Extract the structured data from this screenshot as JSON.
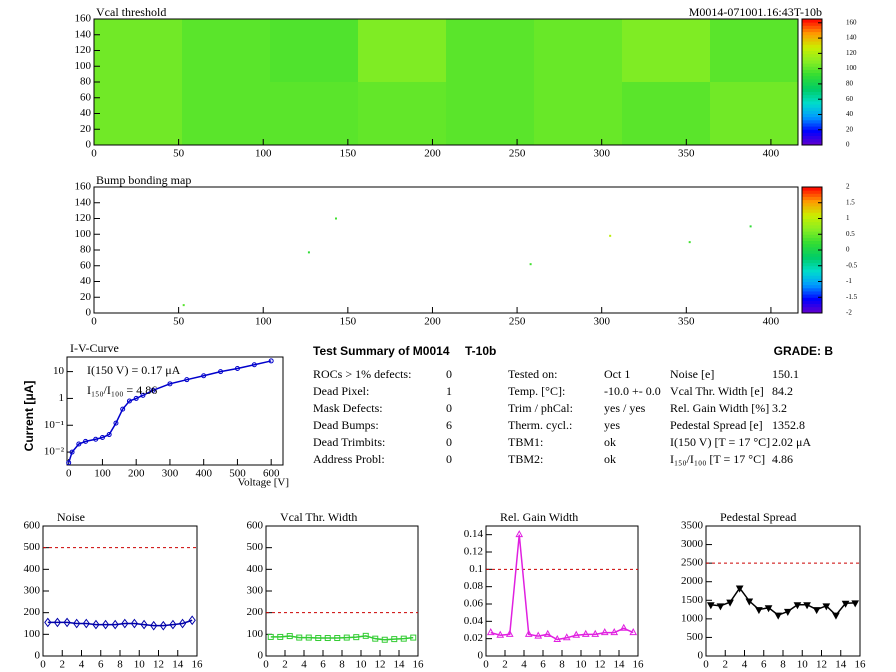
{
  "chart_data": [
    {
      "type": "heatmap",
      "title": "Vcal threshold",
      "subtitle": "M0014-071001.16:43T-10b",
      "x_edges": [
        0,
        52,
        104,
        156,
        208,
        260,
        312,
        364,
        416
      ],
      "y_edges": [
        0,
        80,
        160
      ],
      "values": [
        [
          105,
          100,
          100,
          102,
          100,
          103,
          100,
          105
        ],
        [
          105,
          100,
          98,
          108,
          100,
          103,
          108,
          100
        ]
      ],
      "xlim": [
        0,
        416
      ],
      "xticks": [
        0,
        50,
        100,
        150,
        200,
        250,
        300,
        350,
        400
      ],
      "ylim": [
        0,
        160
      ],
      "yticks": [
        0,
        20,
        40,
        60,
        80,
        100,
        120,
        140,
        160
      ],
      "zlim": [
        0,
        165
      ],
      "zticks": [
        0,
        20,
        40,
        60,
        80,
        100,
        120,
        140,
        160
      ],
      "palette": [
        "#6600cc",
        "#0000ff",
        "#0099ff",
        "#00ddcc",
        "#00cc66",
        "#33dd33",
        "#88ee22",
        "#ccee00",
        "#ff9900",
        "#ff0000"
      ]
    },
    {
      "type": "heatmap",
      "title": "Bump bonding map",
      "x": [
        143,
        127,
        305,
        352,
        388,
        258,
        53
      ],
      "y": [
        120,
        77,
        98,
        90,
        110,
        62,
        10
      ],
      "values": [
        0.3,
        0.2,
        1.0,
        0.3,
        0.2,
        0.3,
        0.4
      ],
      "xlim": [
        0,
        416
      ],
      "xticks": [
        0,
        50,
        100,
        150,
        200,
        250,
        300,
        350,
        400
      ],
      "ylim": [
        0,
        160
      ],
      "yticks": [
        0,
        20,
        40,
        60,
        80,
        100,
        120,
        140,
        160
      ],
      "zlim": [
        -2,
        2
      ],
      "zticks": [
        -2,
        -1.5,
        -1,
        -0.5,
        0,
        0.5,
        1,
        1.5,
        2
      ],
      "palette": [
        "#6600cc",
        "#0000ff",
        "#0099ff",
        "#00ddcc",
        "#00cc66",
        "#33dd33",
        "#88ee22",
        "#ccee00",
        "#ff9900",
        "#ff0000"
      ]
    },
    {
      "type": "line",
      "title": "I-V-Curve",
      "x_label": "Voltage [V]",
      "y_label": "Current [μA]",
      "annotations": [
        "I(150 V) = 0.17 μA",
        "I₁₅₀/I₁₀₀ = 4.86"
      ],
      "x": [
        0,
        10,
        30,
        50,
        80,
        100,
        120,
        140,
        160,
        180,
        200,
        220,
        250,
        300,
        350,
        400,
        450,
        500,
        550,
        600
      ],
      "values": [
        0.004,
        0.01,
        0.02,
        0.025,
        0.03,
        0.035,
        0.045,
        0.12,
        0.4,
        0.8,
        1.0,
        1.3,
        2,
        3.5,
        5,
        7,
        10,
        13,
        18,
        25
      ],
      "color": "#0000cc",
      "marker": "circle",
      "log_y": true,
      "xlim": [
        -5,
        635
      ],
      "xticks": [
        0,
        100,
        200,
        300,
        400,
        500,
        600
      ],
      "ylim": [
        0.0033,
        35
      ],
      "yticks": [
        {
          "value": 0.01,
          "label": "10⁻²"
        },
        {
          "value": 0.1,
          "label": "10⁻¹"
        },
        1,
        10
      ]
    },
    {
      "type": "line",
      "title": "Noise",
      "x": [
        0.5,
        1.5,
        2.5,
        3.5,
        4.5,
        5.5,
        6.5,
        7.5,
        8.5,
        9.5,
        10.5,
        11.5,
        12.5,
        13.5,
        14.5,
        15.5
      ],
      "values": [
        155,
        155,
        155,
        150,
        150,
        145,
        145,
        145,
        150,
        150,
        145,
        140,
        140,
        145,
        150,
        165
      ],
      "color": "#0000aa",
      "marker": "diamond",
      "threshold": 500,
      "xlim": [
        0,
        16
      ],
      "xticks": [
        0,
        2,
        4,
        6,
        8,
        10,
        12,
        14,
        16
      ],
      "ylim": [
        0,
        600
      ],
      "yticks": [
        0,
        100,
        200,
        300,
        400,
        500,
        600
      ]
    },
    {
      "type": "line",
      "title": "Vcal Thr. Width",
      "x": [
        0.5,
        1.5,
        2.5,
        3.5,
        4.5,
        5.5,
        6.5,
        7.5,
        8.5,
        9.5,
        10.5,
        11.5,
        12.5,
        13.5,
        14.5,
        15.5
      ],
      "values": [
        88,
        88,
        92,
        85,
        85,
        83,
        83,
        83,
        85,
        87,
        93,
        80,
        75,
        78,
        80,
        85
      ],
      "color": "#33cc33",
      "marker": "square",
      "threshold": 200,
      "xlim": [
        0,
        16
      ],
      "xticks": [
        0,
        2,
        4,
        6,
        8,
        10,
        12,
        14,
        16
      ],
      "ylim": [
        0,
        600
      ],
      "yticks": [
        0,
        100,
        200,
        300,
        400,
        500,
        600
      ]
    },
    {
      "type": "line",
      "title": "Rel. Gain Width",
      "x": [
        0.5,
        1.5,
        2.5,
        3.5,
        4.5,
        5.5,
        6.5,
        7.5,
        8.5,
        9.5,
        10.5,
        11.5,
        12.5,
        13.5,
        14.5,
        15.5
      ],
      "values": [
        0.027,
        0.024,
        0.025,
        0.14,
        0.025,
        0.023,
        0.025,
        0.019,
        0.021,
        0.024,
        0.025,
        0.025,
        0.027,
        0.027,
        0.032,
        0.027
      ],
      "color": "#e020e0",
      "marker": "triangle",
      "threshold": 0.1,
      "xlim": [
        0,
        16
      ],
      "xticks": [
        0,
        2,
        4,
        6,
        8,
        10,
        12,
        14,
        16
      ],
      "ylim": [
        0,
        0.15
      ],
      "yticks": [
        0,
        0.02,
        0.04,
        0.06,
        0.08,
        0.1,
        0.12,
        0.14
      ]
    },
    {
      "type": "line",
      "title": "Pedestal Spread",
      "x": [
        0.5,
        1.5,
        2.5,
        3.5,
        4.5,
        5.5,
        6.5,
        7.5,
        8.5,
        9.5,
        10.5,
        11.5,
        12.5,
        13.5,
        14.5,
        15.5
      ],
      "values": [
        1380,
        1350,
        1450,
        1830,
        1480,
        1250,
        1300,
        1100,
        1200,
        1380,
        1380,
        1250,
        1350,
        1100,
        1420,
        1430
      ],
      "color": "#000000",
      "marker": "triangle-down",
      "threshold": 2500,
      "xlim": [
        0,
        16
      ],
      "xticks": [
        0,
        2,
        4,
        6,
        8,
        10,
        12,
        14,
        16
      ],
      "ylim": [
        0,
        3500
      ],
      "yticks": [
        0,
        500,
        1000,
        1500,
        2000,
        2500,
        3000,
        3500
      ]
    }
  ],
  "summary": {
    "title": "Test Summary of M0014",
    "tag": "T-10b",
    "grade": "GRADE:  B",
    "left": [
      [
        "ROCs > 1% defects:",
        0
      ],
      [
        "Dead Pixel:",
        1
      ],
      [
        "Mask Defects:",
        0
      ],
      [
        "Dead Bumps:",
        6
      ],
      [
        "Dead Trimbits:",
        0
      ],
      [
        "Address Probl:",
        0
      ]
    ],
    "middle": [
      [
        "Tested on:",
        "Oct 1"
      ],
      [
        "Temp. [°C]:",
        "-10.0 +- 0.0"
      ],
      [
        "Trim / phCal:",
        "yes / yes"
      ],
      [
        "Therm. cycl.:",
        "yes"
      ],
      [
        "TBM1:",
        "ok"
      ],
      [
        "TBM2:",
        "ok"
      ]
    ],
    "right": [
      [
        "Noise [e]",
        150.1
      ],
      [
        "Vcal Thr. Width [e]",
        84.2
      ],
      [
        "Rel. Gain Width [%]",
        3.2
      ],
      [
        "Pedestal Spread [e]",
        1352.8
      ],
      [
        "I(150 V) [T = 17 °C]",
        "2.02 μA"
      ],
      [
        "I₁₅₀/I₁₀₀  [T = 17 °C]",
        4.86
      ]
    ]
  }
}
